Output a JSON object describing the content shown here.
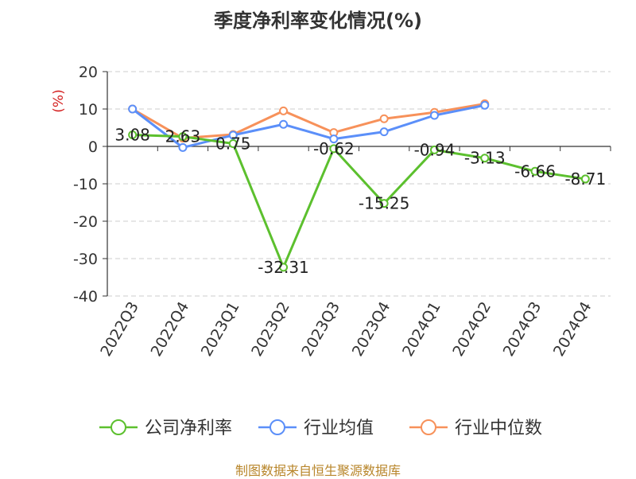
{
  "title": "季度净利率变化情况(%)",
  "footer": "制图数据来自恒生聚源数据库",
  "chart_data": {
    "type": "line",
    "title": "季度净利率变化情况(%)",
    "ylabel": "(%)",
    "xlabel": "",
    "ylim": [
      -40,
      20
    ],
    "yticks": [
      20,
      10,
      0,
      -10,
      -20,
      -30,
      -40
    ],
    "grid": true,
    "legend_position": "bottom",
    "categories": [
      "2022Q3",
      "2022Q4",
      "2023Q1",
      "2023Q2",
      "2023Q3",
      "2023Q4",
      "2024Q1",
      "2024Q2",
      "2024Q3",
      "2024Q4"
    ],
    "series": [
      {
        "name": "公司净利率",
        "color": "#5cc02e",
        "labeled": true,
        "values": [
          3.08,
          2.63,
          0.75,
          -32.31,
          -0.62,
          -15.25,
          -0.94,
          -3.13,
          -6.66,
          -8.71
        ],
        "labels": [
          "3.08",
          "2.63",
          "0.75",
          "-32.31",
          "-0.62",
          "-15.25",
          "-0.94",
          "-3.13",
          "-6.66",
          "-8.71"
        ]
      },
      {
        "name": "行业均值",
        "color": "#5b8ff9",
        "labeled": false,
        "values": [
          10.0,
          -0.3,
          3.0,
          5.9,
          2.0,
          3.9,
          8.3,
          11.0,
          null,
          null
        ]
      },
      {
        "name": "行业中位数",
        "color": "#f7915a",
        "labeled": false,
        "values": [
          10.0,
          2.2,
          3.2,
          9.5,
          3.7,
          7.4,
          9.1,
          11.4,
          null,
          null
        ]
      }
    ]
  }
}
